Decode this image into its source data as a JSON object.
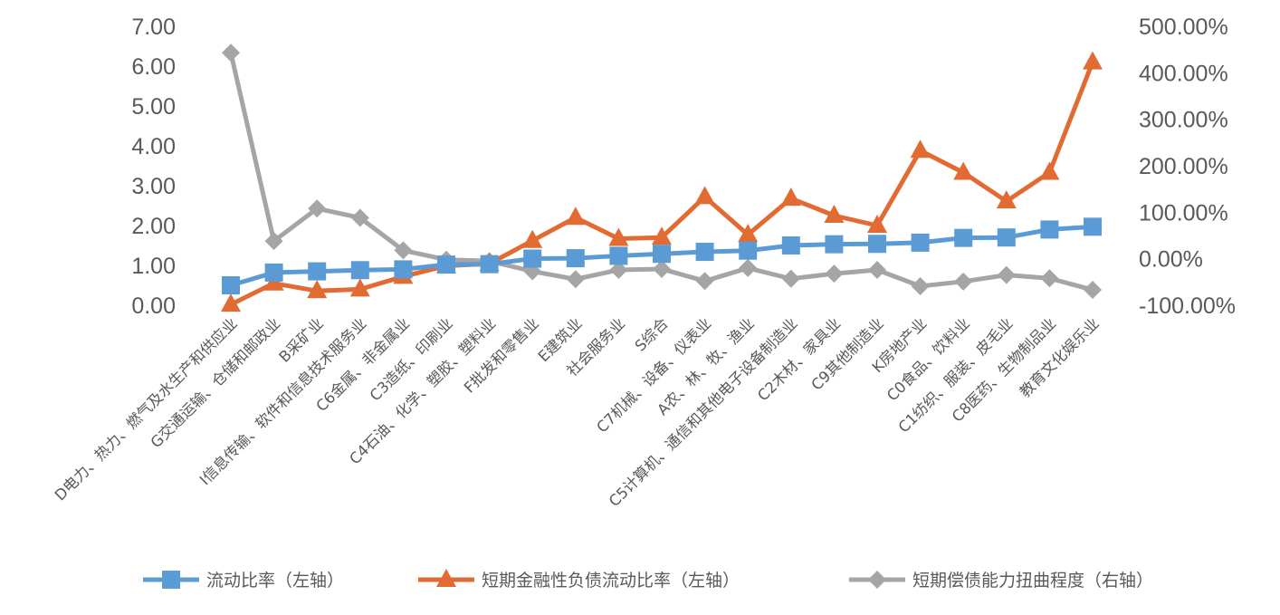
{
  "chart_data": {
    "type": "line",
    "title": "",
    "categories": [
      "D电力、热力、燃气及水生产和供应业",
      "G交通运输、仓储和邮政业",
      "B采矿业",
      "I信息传输、软件和信息技术服务业",
      "C6金属、非金属业",
      "C3造纸、印刷业",
      "C4石油、化学、塑胶、塑料业",
      "F批发和零售业",
      "E建筑业",
      "社会服务业",
      "S综合",
      "C7机械、设备、仪表业",
      "A农、林、牧、渔业",
      "C5计算机、通信和其他电子设备制造业",
      "C2木材、家具业",
      "C9其他制造业",
      "K房地产业",
      "C0食品、饮料业",
      "C1纺织、服装、皮毛业",
      "C8医药、生物制品业",
      "教育文化娱乐业"
    ],
    "series": [
      {
        "name": "流动比率（左轴）",
        "axis": "left",
        "color": "#5B9BD5",
        "marker": "square",
        "values": [
          0.5,
          0.82,
          0.85,
          0.88,
          0.9,
          1.02,
          1.03,
          1.17,
          1.18,
          1.24,
          1.29,
          1.34,
          1.37,
          1.5,
          1.53,
          1.54,
          1.57,
          1.69,
          1.7,
          1.9,
          1.97
        ]
      },
      {
        "name": "短期金融性负债流动比率（左轴）",
        "axis": "left",
        "color": "#E26B33",
        "marker": "triangle",
        "values": [
          0.02,
          0.55,
          0.36,
          0.4,
          0.72,
          0.99,
          1.04,
          1.62,
          2.2,
          1.67,
          1.7,
          2.72,
          1.77,
          2.68,
          2.25,
          2.0,
          3.88,
          3.33,
          2.61,
          3.33,
          6.1
        ]
      },
      {
        "name": "短期偿债能力扭曲程度（右轴）",
        "axis": "right",
        "color": "#A5A5A5",
        "marker": "diamond",
        "values": [
          4.43,
          0.38,
          1.08,
          0.88,
          0.18,
          -0.02,
          -0.05,
          -0.27,
          -0.44,
          -0.24,
          -0.22,
          -0.48,
          -0.2,
          -0.43,
          -0.32,
          -0.24,
          -0.59,
          -0.49,
          -0.35,
          -0.42,
          -0.67
        ]
      }
    ],
    "y_left": {
      "ylim": [
        0,
        7
      ],
      "ticks": [
        "0.00",
        "1.00",
        "2.00",
        "3.00",
        "4.00",
        "5.00",
        "6.00",
        "7.00"
      ]
    },
    "y_right": {
      "ylim": [
        -1,
        5
      ],
      "ticks": [
        "-100.00%",
        "0.00%",
        "100.00%",
        "200.00%",
        "300.00%",
        "400.00%",
        "500.00%"
      ]
    },
    "xlabel": "",
    "ylabel": "",
    "grid": false,
    "legend": "bottom"
  }
}
